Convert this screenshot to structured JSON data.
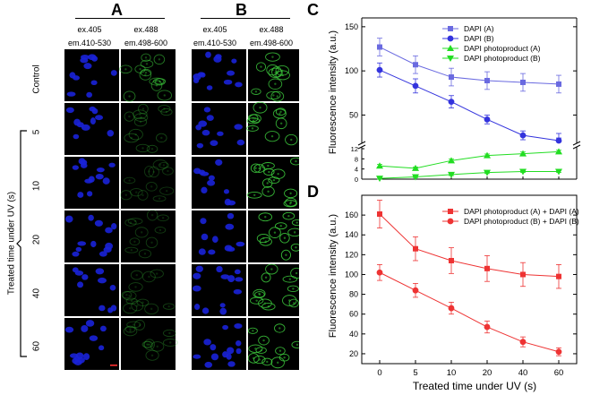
{
  "figure": {
    "panel_A": "A",
    "panel_B": "B",
    "panel_C": "C",
    "panel_D": "D",
    "col_headers": [
      {
        "ex": "ex.405",
        "em": "em.410-530"
      },
      {
        "ex": "ex.488",
        "em": "em.498-600"
      },
      {
        "ex": "ex.405",
        "em": "em.410-530"
      },
      {
        "ex": "ex.488",
        "em": "em.498-600"
      }
    ],
    "row_labels": [
      "Control",
      "5",
      "10",
      "20",
      "40",
      "60"
    ],
    "side_label": "Treated time under UV (s)",
    "green_intensity_A": [
      0.55,
      0.25,
      0.15,
      0.18,
      0.2,
      0.22
    ],
    "green_intensity_B": [
      0.85,
      0.9,
      0.95,
      0.95,
      0.9,
      0.9
    ]
  },
  "chart_data": [
    {
      "type": "line",
      "panel": "C",
      "title": "",
      "xlabel": "",
      "ylabel": "Fluorescence intensity (a.u.)",
      "categories": [
        "0",
        "5",
        "10",
        "20",
        "40",
        "60"
      ],
      "axis_breaks": {
        "lower_range": [
          0,
          12
        ],
        "upper_range": [
          20,
          160
        ]
      },
      "upper_ticks": [
        50,
        100,
        150
      ],
      "lower_ticks": [
        0,
        4,
        8,
        12
      ],
      "lower_tick_labels": [
        "0",
        "4",
        "8",
        "12"
      ],
      "series": [
        {
          "name": "DAPI (A)",
          "color": "#6a6ae0",
          "marker": "square",
          "values": [
            127,
            107,
            93,
            89,
            87,
            85
          ],
          "errors": [
            10,
            10,
            10,
            10,
            10,
            10
          ]
        },
        {
          "name": "DAPI (B)",
          "color": "#3333dd",
          "marker": "circle",
          "values": [
            101,
            83,
            65,
            45,
            27,
            21
          ],
          "errors": [
            8,
            8,
            7,
            5,
            5,
            3
          ]
        },
        {
          "name": "DAPI photoproduct (A)",
          "color": "#22dd22",
          "marker": "triangle-up",
          "values": [
            5.2,
            4.3,
            7.3,
            9.3,
            10.0,
            10.8
          ],
          "errors": [
            0.6,
            0.5,
            0.6,
            0.6,
            0.7,
            0.6
          ]
        },
        {
          "name": "DAPI photoproduct (B)",
          "color": "#22dd22",
          "marker": "triangle-down",
          "values": [
            0.3,
            0.9,
            1.8,
            2.6,
            3.0,
            3.0
          ],
          "errors": [
            0.3,
            0.3,
            0.4,
            0.4,
            0.4,
            0.4
          ]
        }
      ]
    },
    {
      "type": "line",
      "panel": "D",
      "title": "",
      "xlabel": "Treated time under UV (s)",
      "ylabel": "Fluorescence intensity (a.u.)",
      "categories": [
        "0",
        "5",
        "10",
        "20",
        "40",
        "60"
      ],
      "ylim": [
        10,
        180
      ],
      "yticks": [
        20,
        40,
        60,
        80,
        100,
        120,
        140,
        160
      ],
      "series": [
        {
          "name": "DAPI photoproduct (A) + DAPI (A)",
          "color": "#ee3333",
          "marker": "square",
          "values": [
            161,
            126,
            114,
            106,
            100,
            98
          ],
          "errors": [
            14,
            12,
            13,
            13,
            12,
            12
          ]
        },
        {
          "name": "DAPI photoproduct (B) + DAPI (B)",
          "color": "#ee3333",
          "marker": "circle",
          "values": [
            102,
            84,
            66,
            47,
            32,
            22
          ],
          "errors": [
            8,
            7,
            6,
            6,
            5,
            4
          ]
        }
      ]
    }
  ]
}
